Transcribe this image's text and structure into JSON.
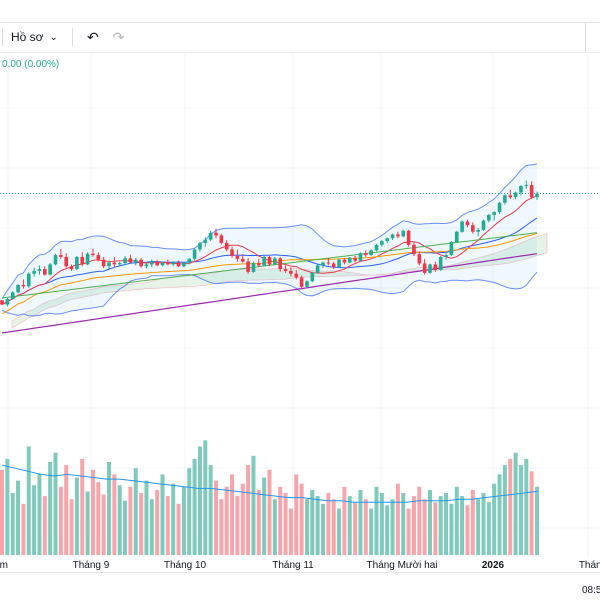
{
  "toolbar": {
    "profile_label": "Hồ sơ",
    "chevron_icon": "chevron-down-icon",
    "undo_icon": "undo-icon",
    "redo_icon": "redo-icon"
  },
  "legend": {
    "change_text": "0.00 (0.00%)"
  },
  "status": {
    "time": "08:5"
  },
  "colors": {
    "up": "#22ab94",
    "down": "#f23645",
    "volume_up": "#7fcabc",
    "volume_down": "#f7a5ab",
    "bollinger": "#2962ff",
    "ma_long": "#9c27b0",
    "ma_mid": "#4caf50",
    "ma_orange": "#ff9800"
  },
  "chart_data": {
    "type": "candlestick",
    "x_ticks": [
      "Tám",
      "Tháng 9",
      "Tháng 10",
      "Tháng 11",
      "Tháng Mười hai",
      "2026",
      "Tháng H"
    ],
    "ohlc": [
      [
        2.5,
        2.6,
        1.5,
        1.6
      ],
      [
        1.6,
        3.0,
        1.2,
        2.8
      ],
      [
        2.8,
        4.5,
        2.6,
        4.2
      ],
      [
        4.2,
        6.0,
        4.0,
        5.8
      ],
      [
        5.8,
        7.0,
        5.0,
        5.5
      ],
      [
        5.5,
        8.5,
        5.2,
        8.2
      ],
      [
        8.2,
        9.5,
        7.6,
        8.8
      ],
      [
        8.8,
        10.0,
        8.0,
        9.2
      ],
      [
        9.2,
        9.8,
        7.8,
        8.0
      ],
      [
        8.0,
        10.5,
        7.8,
        10.2
      ],
      [
        10.2,
        12.5,
        10.0,
        12.2
      ],
      [
        12.2,
        13.5,
        11.4,
        11.8
      ],
      [
        11.8,
        12.6,
        9.5,
        9.8
      ],
      [
        9.8,
        10.2,
        8.8,
        9.2
      ],
      [
        9.2,
        12.0,
        9.0,
        11.8
      ],
      [
        11.8,
        12.8,
        9.8,
        10.2
      ],
      [
        10.2,
        12.8,
        10.0,
        12.5
      ],
      [
        12.5,
        13.6,
        11.8,
        12.2
      ],
      [
        12.2,
        12.8,
        10.8,
        11.2
      ],
      [
        11.2,
        11.8,
        9.4,
        9.8
      ],
      [
        9.8,
        11.0,
        9.0,
        10.6
      ],
      [
        10.6,
        11.8,
        9.6,
        10.2
      ],
      [
        10.2,
        10.8,
        9.8,
        10.5
      ],
      [
        10.5,
        12.0,
        10.0,
        11.5
      ],
      [
        11.5,
        12.3,
        10.4,
        10.6
      ],
      [
        10.6,
        11.6,
        10.0,
        11.2
      ],
      [
        11.2,
        11.6,
        9.5,
        9.8
      ],
      [
        9.8,
        10.6,
        9.4,
        10.2
      ],
      [
        10.2,
        11.3,
        9.6,
        10.8
      ],
      [
        10.8,
        11.2,
        9.8,
        10.0
      ],
      [
        10.0,
        10.8,
        9.8,
        10.5
      ],
      [
        10.5,
        11.2,
        10.0,
        10.2
      ],
      [
        10.2,
        10.9,
        9.8,
        10.6
      ],
      [
        10.6,
        11.0,
        9.6,
        9.8
      ],
      [
        9.8,
        10.8,
        9.6,
        10.6
      ],
      [
        10.6,
        11.6,
        10.2,
        11.4
      ],
      [
        11.4,
        13.6,
        11.0,
        13.4
      ],
      [
        13.4,
        15.0,
        13.0,
        14.8
      ],
      [
        14.8,
        16.0,
        14.0,
        15.5
      ],
      [
        15.5,
        17.4,
        15.2,
        17.0
      ],
      [
        17.0,
        17.8,
        15.8,
        16.4
      ],
      [
        16.4,
        16.8,
        14.5,
        14.8
      ],
      [
        14.8,
        15.4,
        13.0,
        13.4
      ],
      [
        13.4,
        14.0,
        11.6,
        12.0
      ],
      [
        12.0,
        13.4,
        10.8,
        11.4
      ],
      [
        11.4,
        12.4,
        10.6,
        10.8
      ],
      [
        10.8,
        11.6,
        8.2,
        8.6
      ],
      [
        8.6,
        10.8,
        8.4,
        10.5
      ],
      [
        10.5,
        11.4,
        9.6,
        10.0
      ],
      [
        10.0,
        12.0,
        9.8,
        11.8
      ],
      [
        11.8,
        12.0,
        9.8,
        10.2
      ],
      [
        10.2,
        11.8,
        10.0,
        11.5
      ],
      [
        11.5,
        11.8,
        8.6,
        9.2
      ],
      [
        9.2,
        10.0,
        8.4,
        8.8
      ],
      [
        8.8,
        9.6,
        7.6,
        8.2
      ],
      [
        8.2,
        9.0,
        7.0,
        7.4
      ],
      [
        7.4,
        7.8,
        5.0,
        5.4
      ],
      [
        5.4,
        6.8,
        5.2,
        6.6
      ],
      [
        6.6,
        8.6,
        6.4,
        8.4
      ],
      [
        8.4,
        10.2,
        8.2,
        10.0
      ],
      [
        10.0,
        10.8,
        9.4,
        10.6
      ],
      [
        10.6,
        11.6,
        10.0,
        10.4
      ],
      [
        10.4,
        10.8,
        9.2,
        9.6
      ],
      [
        9.6,
        11.4,
        9.5,
        11.2
      ],
      [
        11.2,
        11.6,
        10.2,
        10.6
      ],
      [
        10.6,
        11.8,
        10.4,
        11.6
      ],
      [
        11.6,
        12.0,
        10.6,
        11.0
      ],
      [
        11.0,
        12.8,
        10.8,
        12.6
      ],
      [
        12.6,
        13.2,
        11.8,
        12.2
      ],
      [
        12.2,
        13.4,
        12.0,
        13.2
      ],
      [
        13.2,
        14.6,
        13.0,
        14.4
      ],
      [
        14.4,
        15.4,
        14.0,
        15.2
      ],
      [
        15.2,
        16.0,
        14.8,
        15.8
      ],
      [
        15.8,
        16.8,
        15.4,
        16.6
      ],
      [
        16.6,
        17.2,
        15.8,
        16.2
      ],
      [
        16.2,
        17.6,
        16.0,
        17.4
      ],
      [
        17.4,
        17.6,
        14.0,
        14.4
      ],
      [
        14.4,
        15.0,
        12.0,
        12.4
      ],
      [
        12.4,
        13.0,
        10.0,
        10.4
      ],
      [
        10.4,
        11.4,
        8.0,
        8.4
      ],
      [
        8.4,
        10.4,
        8.2,
        10.2
      ],
      [
        10.2,
        10.8,
        8.6,
        9.0
      ],
      [
        9.0,
        12.0,
        8.8,
        11.8
      ],
      [
        11.8,
        12.6,
        11.2,
        12.2
      ],
      [
        12.2,
        15.2,
        12.0,
        15.0
      ],
      [
        15.0,
        17.4,
        14.8,
        17.2
      ],
      [
        17.2,
        19.6,
        17.0,
        19.4
      ],
      [
        19.4,
        19.8,
        18.2,
        18.6
      ],
      [
        18.6,
        19.2,
        16.8,
        17.2
      ],
      [
        17.2,
        18.0,
        16.2,
        17.6
      ],
      [
        17.6,
        19.8,
        17.4,
        19.6
      ],
      [
        19.6,
        21.0,
        19.2,
        20.8
      ],
      [
        20.8,
        21.6,
        19.6,
        21.4
      ],
      [
        21.4,
        23.6,
        21.0,
        23.4
      ],
      [
        23.4,
        25.2,
        23.0,
        25.0
      ],
      [
        25.0,
        26.2,
        24.2,
        24.6
      ],
      [
        24.6,
        25.8,
        24.2,
        25.6
      ],
      [
        25.6,
        27.2,
        25.0,
        27.0
      ],
      [
        27.0,
        28.2,
        26.4,
        27.2
      ],
      [
        27.2,
        28.0,
        24.2,
        24.6
      ],
      [
        24.6,
        25.8,
        24.0,
        25.4
      ]
    ],
    "volume": [
      55,
      62,
      40,
      48,
      33,
      70,
      45,
      52,
      38,
      60,
      66,
      44,
      58,
      36,
      50,
      62,
      41,
      55,
      47,
      39,
      60,
      52,
      45,
      35,
      44,
      56,
      40,
      48,
      36,
      42,
      52,
      38,
      46,
      33,
      44,
      56,
      62,
      70,
      74,
      58,
      48,
      36,
      44,
      52,
      38,
      46,
      58,
      64,
      42,
      50,
      55,
      36,
      44,
      40,
      30,
      52,
      46,
      36,
      42,
      38,
      33,
      40,
      36,
      30,
      44,
      38,
      34,
      42,
      36,
      30,
      44,
      40,
      32,
      36,
      46,
      40,
      30,
      38,
      44,
      36,
      42,
      34,
      38,
      40,
      33,
      44,
      38,
      32,
      42,
      36,
      40,
      34,
      46,
      52,
      58,
      62,
      66,
      58,
      62,
      54,
      44
    ],
    "volume_overlay": [
      58,
      56,
      54,
      52,
      51,
      52,
      51,
      50,
      49,
      49,
      48,
      47,
      46,
      45,
      44,
      43,
      43,
      42,
      41,
      40,
      39,
      38,
      37,
      37,
      36,
      35,
      35,
      34,
      34,
      34,
      34,
      34,
      35,
      35,
      35,
      36,
      36,
      37,
      38,
      39,
      40,
      41
    ]
  }
}
